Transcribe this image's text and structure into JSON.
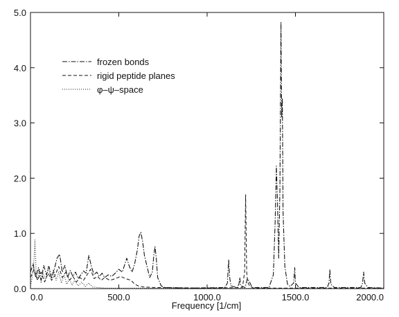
{
  "chart_data": {
    "type": "line",
    "title": "",
    "xlabel": "Frequency [1/cm]",
    "ylabel": "",
    "xlim": [
      0,
      2000
    ],
    "ylim": [
      0,
      5
    ],
    "grid": false,
    "legend_position": "top-left",
    "x_ticks": [
      "0.0",
      "500.0",
      "1000.0",
      "1500.0",
      "2000.0"
    ],
    "y_ticks": [
      "0.0",
      "1.0",
      "2.0",
      "3.0",
      "4.0",
      "5.0"
    ],
    "series": [
      {
        "name": "frozen bonds",
        "style": "dash-dot",
        "points": [
          [
            0,
            0.3
          ],
          [
            15,
            0.45
          ],
          [
            30,
            0.2
          ],
          [
            45,
            0.38
          ],
          [
            60,
            0.15
          ],
          [
            75,
            0.42
          ],
          [
            90,
            0.25
          ],
          [
            105,
            0.4
          ],
          [
            120,
            0.18
          ],
          [
            135,
            0.35
          ],
          [
            150,
            0.55
          ],
          [
            165,
            0.62
          ],
          [
            180,
            0.3
          ],
          [
            195,
            0.42
          ],
          [
            210,
            0.2
          ],
          [
            225,
            0.33
          ],
          [
            240,
            0.22
          ],
          [
            255,
            0.3
          ],
          [
            270,
            0.18
          ],
          [
            285,
            0.25
          ],
          [
            300,
            0.32
          ],
          [
            315,
            0.28
          ],
          [
            330,
            0.6
          ],
          [
            345,
            0.4
          ],
          [
            360,
            0.25
          ],
          [
            375,
            0.3
          ],
          [
            390,
            0.22
          ],
          [
            405,
            0.28
          ],
          [
            420,
            0.2
          ],
          [
            440,
            0.25
          ],
          [
            460,
            0.22
          ],
          [
            480,
            0.28
          ],
          [
            500,
            0.35
          ],
          [
            520,
            0.3
          ],
          [
            535,
            0.45
          ],
          [
            545,
            0.55
          ],
          [
            560,
            0.4
          ],
          [
            575,
            0.3
          ],
          [
            590,
            0.45
          ],
          [
            605,
            0.7
          ],
          [
            615,
            0.95
          ],
          [
            625,
            1.02
          ],
          [
            635,
            0.85
          ],
          [
            645,
            0.6
          ],
          [
            660,
            0.4
          ],
          [
            675,
            0.2
          ],
          [
            690,
            0.3
          ],
          [
            698,
            0.6
          ],
          [
            705,
            0.76
          ],
          [
            712,
            0.55
          ],
          [
            720,
            0.2
          ],
          [
            740,
            0.05
          ],
          [
            760,
            0.02
          ],
          [
            900,
            0.01
          ],
          [
            1100,
            0.02
          ],
          [
            1115,
            0.1
          ],
          [
            1122,
            0.52
          ],
          [
            1128,
            0.2
          ],
          [
            1135,
            0.05
          ],
          [
            1170,
            0.02
          ],
          [
            1180,
            0.08
          ],
          [
            1185,
            0.2
          ],
          [
            1190,
            0.05
          ],
          [
            1215,
            0.02
          ],
          [
            1228,
            0.18
          ],
          [
            1240,
            0.12
          ],
          [
            1255,
            0.02
          ],
          [
            1350,
            0.02
          ],
          [
            1375,
            0.25
          ],
          [
            1385,
            1.2
          ],
          [
            1392,
            2.22
          ],
          [
            1398,
            1.6
          ],
          [
            1405,
            0.55
          ],
          [
            1412,
            1.8
          ],
          [
            1418,
            4.82
          ],
          [
            1422,
            3.1
          ],
          [
            1426,
            3.45
          ],
          [
            1430,
            1.4
          ],
          [
            1440,
            0.4
          ],
          [
            1455,
            0.08
          ],
          [
            1470,
            0.04
          ],
          [
            1490,
            0.1
          ],
          [
            1496,
            0.38
          ],
          [
            1500,
            0.1
          ],
          [
            1520,
            0.02
          ],
          [
            1680,
            0.02
          ],
          [
            1690,
            0.1
          ],
          [
            1695,
            0.34
          ],
          [
            1700,
            0.08
          ],
          [
            1720,
            0.02
          ],
          [
            1870,
            0.02
          ],
          [
            1880,
            0.1
          ],
          [
            1886,
            0.3
          ],
          [
            1892,
            0.1
          ],
          [
            1910,
            0.02
          ],
          [
            2000,
            0.01
          ]
        ]
      },
      {
        "name": "rigid peptide planes",
        "style": "dashed",
        "points": [
          [
            0,
            0.2
          ],
          [
            20,
            0.35
          ],
          [
            40,
            0.15
          ],
          [
            60,
            0.3
          ],
          [
            80,
            0.12
          ],
          [
            100,
            0.28
          ],
          [
            120,
            0.15
          ],
          [
            140,
            0.25
          ],
          [
            160,
            0.4
          ],
          [
            180,
            0.2
          ],
          [
            200,
            0.3
          ],
          [
            220,
            0.15
          ],
          [
            240,
            0.22
          ],
          [
            260,
            0.12
          ],
          [
            280,
            0.2
          ],
          [
            300,
            0.15
          ],
          [
            320,
            0.25
          ],
          [
            340,
            0.35
          ],
          [
            360,
            0.18
          ],
          [
            380,
            0.22
          ],
          [
            400,
            0.15
          ],
          [
            420,
            0.2
          ],
          [
            450,
            0.15
          ],
          [
            480,
            0.18
          ],
          [
            510,
            0.22
          ],
          [
            540,
            0.18
          ],
          [
            570,
            0.15
          ],
          [
            590,
            0.08
          ],
          [
            610,
            0.05
          ],
          [
            640,
            0.03
          ],
          [
            700,
            0.02
          ],
          [
            1000,
            0.01
          ],
          [
            1200,
            0.02
          ],
          [
            1212,
            0.3
          ],
          [
            1218,
            1.7
          ],
          [
            1224,
            0.3
          ],
          [
            1230,
            0.12
          ],
          [
            1240,
            0.05
          ],
          [
            1260,
            0.01
          ],
          [
            2000,
            0.01
          ]
        ]
      },
      {
        "name": "φ–ψ–space",
        "style": "dotted",
        "points": [
          [
            0,
            0.05
          ],
          [
            10,
            0.2
          ],
          [
            18,
            0.4
          ],
          [
            25,
            0.88
          ],
          [
            32,
            0.3
          ],
          [
            40,
            0.15
          ],
          [
            50,
            0.35
          ],
          [
            60,
            0.1
          ],
          [
            70,
            0.3
          ],
          [
            85,
            0.15
          ],
          [
            100,
            0.4
          ],
          [
            115,
            0.2
          ],
          [
            130,
            0.35
          ],
          [
            145,
            0.15
          ],
          [
            160,
            0.3
          ],
          [
            175,
            0.1
          ],
          [
            190,
            0.25
          ],
          [
            205,
            0.08
          ],
          [
            220,
            0.18
          ],
          [
            235,
            0.06
          ],
          [
            250,
            0.15
          ],
          [
            270,
            0.05
          ],
          [
            290,
            0.12
          ],
          [
            310,
            0.04
          ],
          [
            330,
            0.1
          ],
          [
            350,
            0.03
          ],
          [
            380,
            0.02
          ],
          [
            420,
            0.01
          ],
          [
            2000,
            0.0
          ]
        ]
      }
    ]
  }
}
